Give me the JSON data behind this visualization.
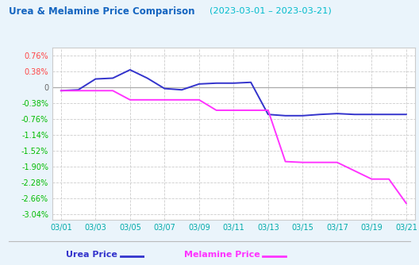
{
  "title_left": "Urea & Melamine Price Comparison",
  "title_right": "(2023-03-01 – 2023-03-21)",
  "title_left_color": "#1565C0",
  "title_right_color": "#00BBCC",
  "x_labels": [
    "03/01",
    "03/03",
    "03/05",
    "03/07",
    "03/09",
    "03/11",
    "03/13",
    "03/15",
    "03/17",
    "03/19",
    "03/21"
  ],
  "urea_x": [
    0,
    1,
    2,
    3,
    4,
    5,
    6,
    7,
    8,
    9,
    10,
    11,
    12,
    13,
    14,
    15,
    16,
    17,
    18,
    19,
    20
  ],
  "urea_y": [
    -0.08,
    -0.06,
    0.2,
    0.22,
    0.42,
    0.22,
    -0.03,
    -0.06,
    0.08,
    0.1,
    0.1,
    0.12,
    -0.65,
    -0.68,
    -0.68,
    -0.65,
    -0.63,
    -0.65,
    -0.65,
    -0.65,
    -0.65
  ],
  "melamine_x": [
    0,
    1,
    2,
    3,
    4,
    5,
    6,
    7,
    8,
    9,
    10,
    11,
    12,
    13,
    14,
    15,
    16,
    17,
    18,
    19,
    20
  ],
  "melamine_y": [
    -0.08,
    -0.08,
    -0.08,
    -0.08,
    -0.3,
    -0.3,
    -0.3,
    -0.3,
    -0.3,
    -0.55,
    -0.55,
    -0.55,
    -0.55,
    -1.78,
    -1.8,
    -1.8,
    -1.8,
    -2.0,
    -2.2,
    -2.2,
    -2.78
  ],
  "urea_color": "#3333CC",
  "melamine_color": "#FF33FF",
  "yticks": [
    0.76,
    0.38,
    0,
    -0.38,
    -0.76,
    -1.14,
    -1.52,
    -1.9,
    -2.28,
    -2.66,
    -3.04
  ],
  "ylim": [
    -3.18,
    0.95
  ],
  "ylabel_color": "#00BB00",
  "grid_color": "#CCCCCC",
  "bg_color": "#EAF4FB",
  "plot_bg_color": "#FFFFFF",
  "zero_line_color": "#AAAAAA",
  "legend_urea_label": "Urea Price",
  "legend_melamine_label": "Melamine Price",
  "xlabel_color": "#00AAAA",
  "ytick_red": [
    0.76,
    0.38
  ],
  "ytick_black": [
    0
  ],
  "bottom_line_color": "#BBBBBB"
}
